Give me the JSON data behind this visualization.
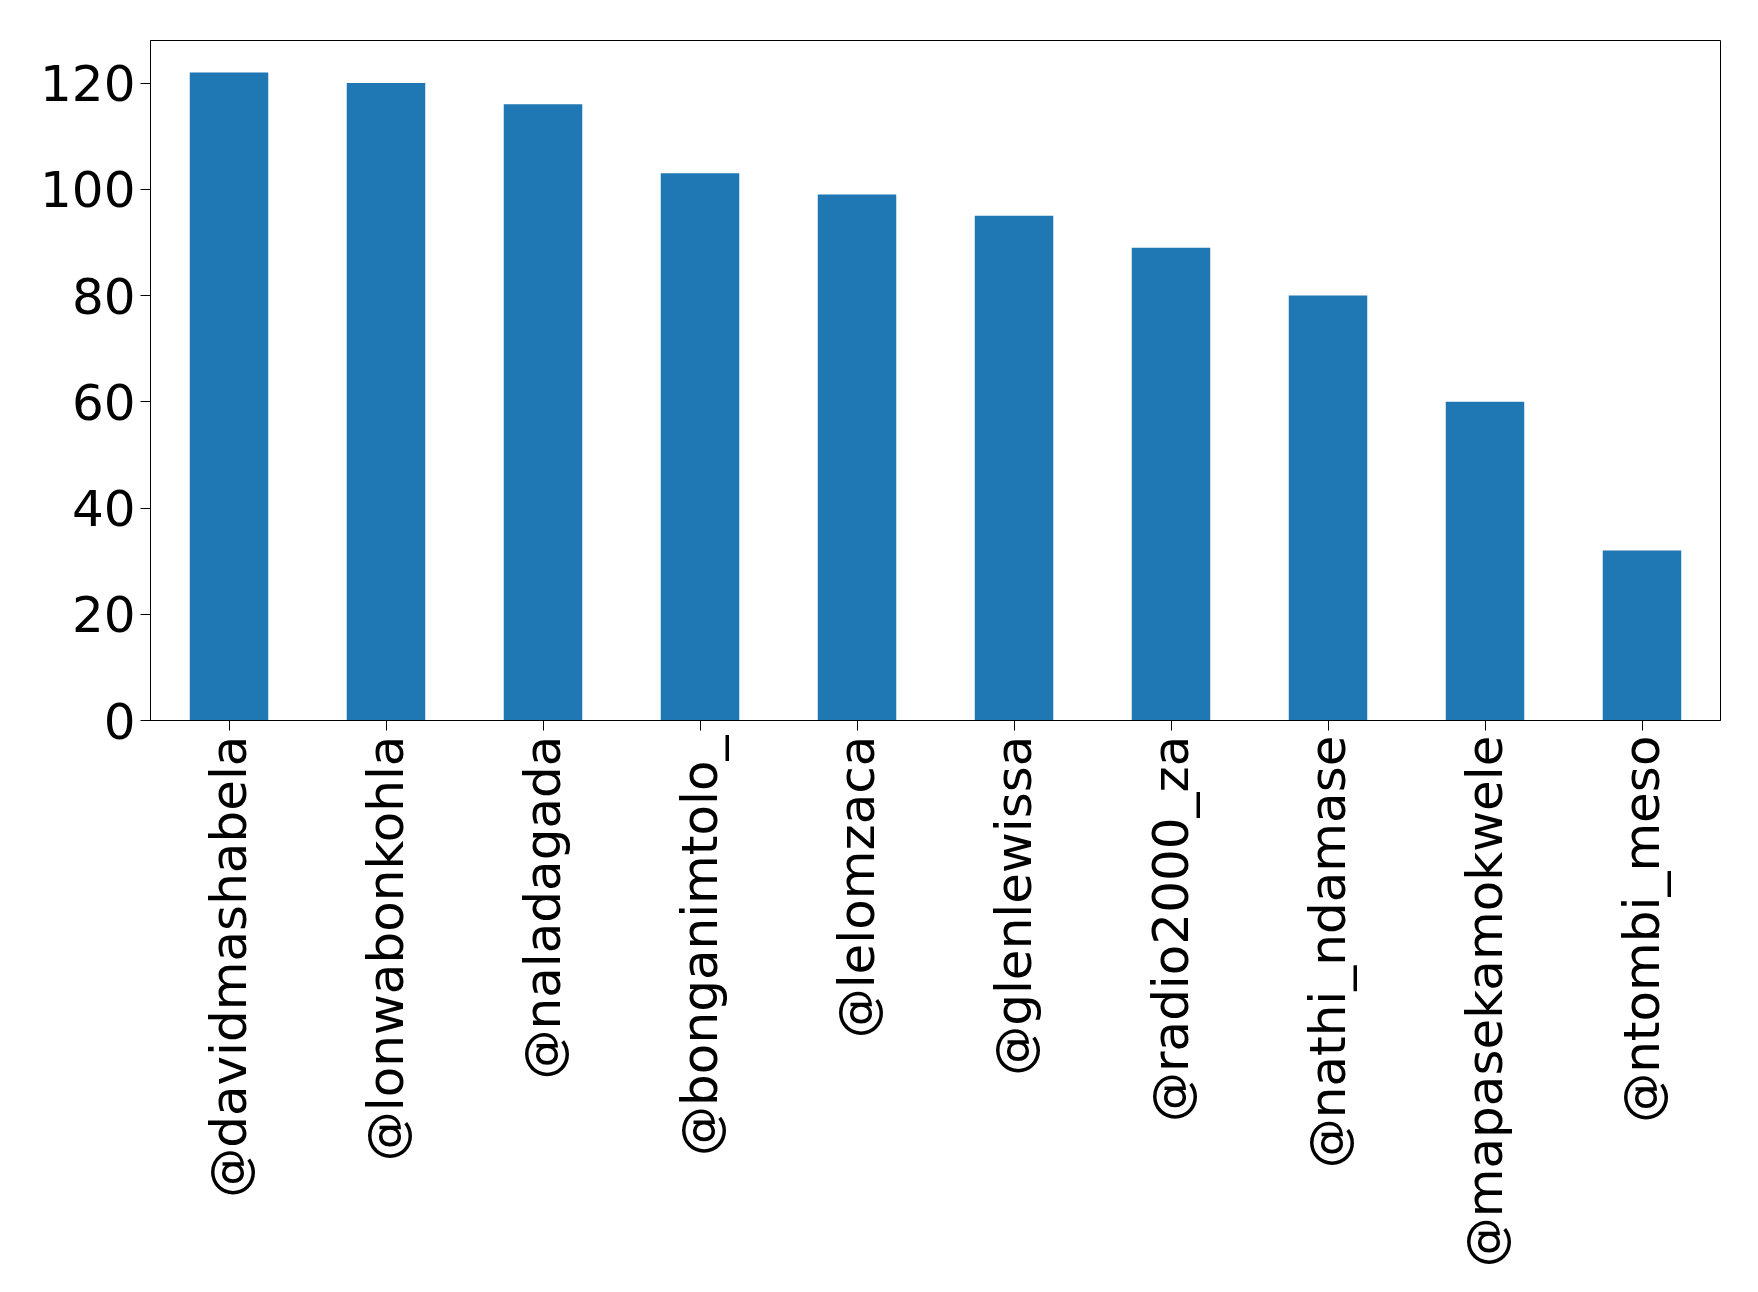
{
  "chart_data": {
    "type": "bar",
    "categories": [
      "@davidmashabela",
      "@lonwabonkohla",
      "@naladagada",
      "@bonganimtolo_",
      "@lelomzaca",
      "@glenlewissa",
      "@radio2000_za",
      "@nathi_ndamase",
      "@mapasekamokwele",
      "@ntombi_meso"
    ],
    "values": [
      122,
      120,
      116,
      103,
      99,
      95,
      89,
      80,
      60,
      32
    ],
    "color": "#1f77b4",
    "ylim": [
      0,
      128
    ],
    "yticks": [
      0,
      20,
      40,
      60,
      80,
      100,
      120
    ],
    "grid": false
  }
}
